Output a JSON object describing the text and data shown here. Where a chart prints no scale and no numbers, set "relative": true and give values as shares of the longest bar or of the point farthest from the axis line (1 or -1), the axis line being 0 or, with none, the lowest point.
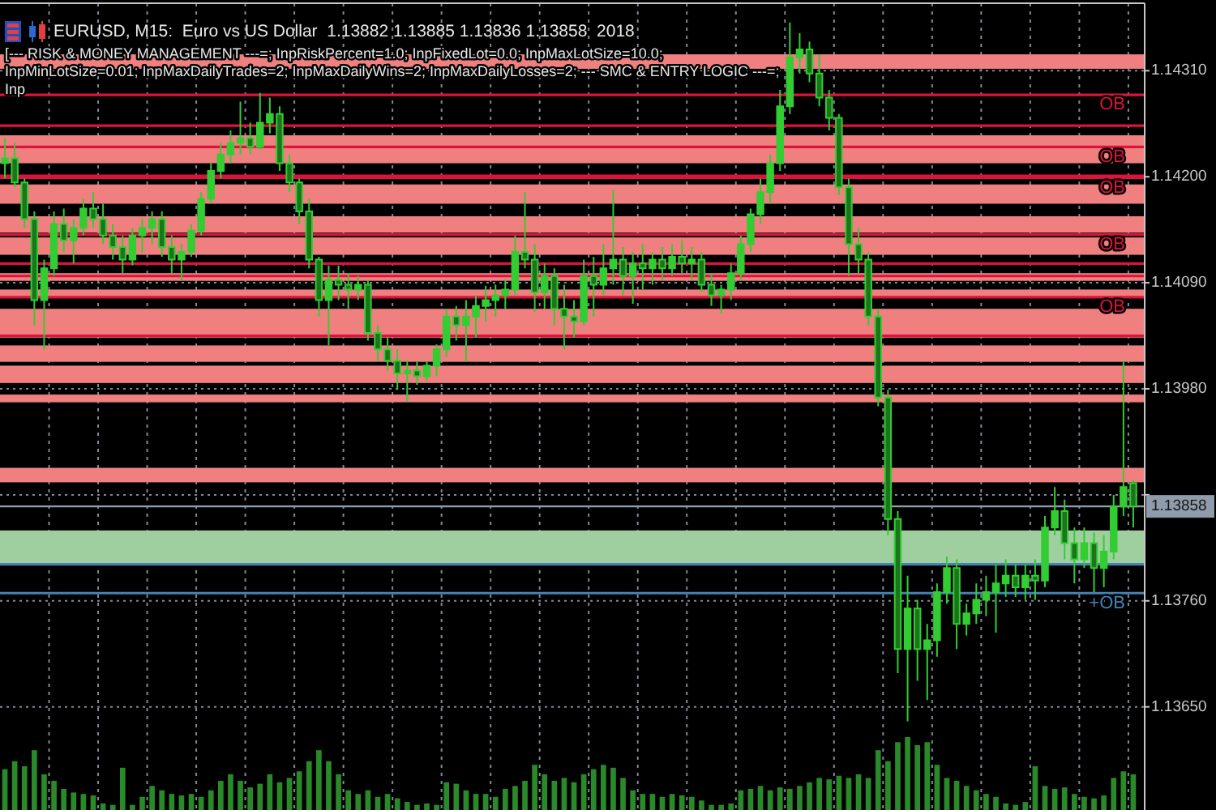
{
  "chart_data": [
    {
      "type": "candlestick",
      "title": "EURUSD, M15:  Euro vs US Dollar  1.13882 1.13885 1.13836 1.13858  2018",
      "subtitle": "[--- RISK & MONEY MANAGEMENT ---=; InpRiskPercent=1.0; InpFixedLot=0.0; InpMaxLotSize=10.0; InpMinLotSize=0.01; InpMaxDailyTrades=2; InpMaxDailyWins=2; InpMaxDailyLosses=2; --- SMC & ENTRY LOGIC ---=; Inp",
      "categories": [
        null,
        null,
        null,
        null,
        null,
        null,
        null,
        null,
        null,
        null,
        null,
        null,
        null,
        null,
        null,
        null,
        null,
        null,
        null,
        null,
        null,
        null,
        null,
        null,
        null,
        null,
        null,
        null,
        null,
        null,
        null,
        null,
        null,
        null,
        null,
        null,
        null,
        null,
        null,
        null,
        null,
        null,
        null,
        null,
        null,
        null,
        null,
        null,
        null,
        null,
        null,
        null,
        null,
        null,
        null,
        null,
        null,
        null,
        null,
        null,
        null,
        null,
        null,
        null,
        null,
        null,
        null,
        null,
        null,
        null,
        null,
        null,
        null,
        null,
        null,
        null,
        null,
        null,
        null,
        null,
        null,
        null,
        null,
        null,
        null,
        null,
        null,
        null,
        null,
        null,
        null,
        null,
        null,
        null,
        null,
        null,
        null,
        null,
        null,
        null,
        null,
        null,
        null,
        null,
        null,
        null,
        null,
        null,
        null,
        null,
        null,
        null,
        null,
        null,
        null,
        null
      ],
      "ohlc": [
        [
          1.14214,
          1.1424,
          1.14198,
          1.14219
        ],
        [
          1.14219,
          1.14235,
          1.14189,
          1.14194
        ],
        [
          1.14194,
          1.14198,
          1.14147,
          1.14156
        ],
        [
          1.14156,
          1.14164,
          1.14046,
          1.14072
        ],
        [
          1.14072,
          1.14114,
          1.14021,
          1.14105
        ],
        [
          1.14105,
          1.14164,
          1.14097,
          1.14151
        ],
        [
          1.14151,
          1.14167,
          1.14122,
          1.14134
        ],
        [
          1.14134,
          1.14156,
          1.1411,
          1.14147
        ],
        [
          1.14147,
          1.14177,
          1.14139,
          1.14167
        ],
        [
          1.14167,
          1.14184,
          1.14147,
          1.14156
        ],
        [
          1.14156,
          1.14172,
          1.1413,
          1.14139
        ],
        [
          1.14139,
          1.14151,
          1.14114,
          1.14127
        ],
        [
          1.14127,
          1.14139,
          1.141,
          1.14114
        ],
        [
          1.14114,
          1.14147,
          1.14108,
          1.14139
        ],
        [
          1.14139,
          1.14156,
          1.14122,
          1.14147
        ],
        [
          1.14147,
          1.14164,
          1.1413,
          1.14156
        ],
        [
          1.14156,
          1.14164,
          1.14117,
          1.14127
        ],
        [
          1.14127,
          1.14139,
          1.141,
          1.14114
        ],
        [
          1.14114,
          1.1413,
          1.14092,
          1.14122
        ],
        [
          1.14122,
          1.14151,
          1.14117,
          1.14144
        ],
        [
          1.14144,
          1.14184,
          1.14139,
          1.14177
        ],
        [
          1.14177,
          1.14214,
          1.14172,
          1.14206
        ],
        [
          1.14206,
          1.14235,
          1.14198,
          1.14223
        ],
        [
          1.14223,
          1.14248,
          1.14214,
          1.14235
        ],
        [
          1.14235,
          1.14278,
          1.14223,
          1.1424
        ],
        [
          1.1424,
          1.14256,
          1.14223,
          1.14231
        ],
        [
          1.14231,
          1.14287,
          1.14228,
          1.14256
        ],
        [
          1.14256,
          1.14282,
          1.14245,
          1.14265
        ],
        [
          1.14265,
          1.14273,
          1.14206,
          1.14214
        ],
        [
          1.14214,
          1.14223,
          1.14184,
          1.14194
        ],
        [
          1.14194,
          1.14198,
          1.14151,
          1.14164
        ],
        [
          1.14164,
          1.14177,
          1.14105,
          1.14114
        ],
        [
          1.14114,
          1.14117,
          1.14055,
          1.14072
        ],
        [
          1.14072,
          1.14108,
          1.14025,
          1.14093
        ],
        [
          1.14093,
          1.14108,
          1.14072,
          1.14088
        ],
        [
          1.14088,
          1.141,
          1.14063,
          1.14083
        ],
        [
          1.14083,
          1.14097,
          1.14072,
          1.14088
        ],
        [
          1.14088,
          1.14093,
          1.1403,
          1.14038
        ],
        [
          1.14038,
          1.14046,
          1.14009,
          1.14021
        ],
        [
          1.14021,
          1.14033,
          1.13999,
          1.14009
        ],
        [
          1.14009,
          1.14021,
          1.13979,
          1.13996
        ],
        [
          1.13996,
          1.14009,
          1.13967,
          1.13999
        ],
        [
          1.13999,
          1.14009,
          1.13984,
          1.13993
        ],
        [
          1.13993,
          1.14009,
          1.13988,
          1.14004
        ],
        [
          1.14004,
          1.14026,
          1.13993,
          1.14021
        ],
        [
          1.14021,
          1.14063,
          1.14013,
          1.14055
        ],
        [
          1.14055,
          1.14066,
          1.1403,
          1.14046
        ],
        [
          1.14046,
          1.14072,
          1.14008,
          1.14055
        ],
        [
          1.14055,
          1.14077,
          1.14033,
          1.14066
        ],
        [
          1.14066,
          1.14087,
          1.1405,
          1.14072
        ],
        [
          1.14072,
          1.14088,
          1.14055,
          1.14077
        ],
        [
          1.14077,
          1.14093,
          1.14063,
          1.14083
        ],
        [
          1.14083,
          1.14139,
          1.14077,
          1.14122
        ],
        [
          1.14122,
          1.14184,
          1.14105,
          1.14114
        ],
        [
          1.14114,
          1.1413,
          1.1406,
          1.1408
        ],
        [
          1.1408,
          1.1411,
          1.14063,
          1.14097
        ],
        [
          1.14097,
          1.14105,
          1.14046,
          1.14063
        ],
        [
          1.14063,
          1.14088,
          1.14021,
          1.14055
        ],
        [
          1.14055,
          1.14072,
          1.14033,
          1.1405
        ],
        [
          1.1405,
          1.14114,
          1.14046,
          1.14097
        ],
        [
          1.14097,
          1.14117,
          1.14055,
          1.14088
        ],
        [
          1.14088,
          1.1413,
          1.14077,
          1.14105
        ],
        [
          1.14105,
          1.14186,
          1.14088,
          1.14114
        ],
        [
          1.14114,
          1.14127,
          1.14077,
          1.14097
        ],
        [
          1.14097,
          1.14122,
          1.14068,
          1.1411
        ],
        [
          1.1411,
          1.1413,
          1.14083,
          1.14105
        ],
        [
          1.14105,
          1.14122,
          1.14088,
          1.14114
        ],
        [
          1.14114,
          1.14127,
          1.14093,
          1.14105
        ],
        [
          1.14105,
          1.1413,
          1.14097,
          1.14117
        ],
        [
          1.14117,
          1.14134,
          1.141,
          1.1411
        ],
        [
          1.1411,
          1.14127,
          1.14093,
          1.14114
        ],
        [
          1.14114,
          1.14122,
          1.1408,
          1.14088
        ],
        [
          1.14088,
          1.141,
          1.14066,
          1.14077
        ],
        [
          1.14077,
          1.14088,
          1.14058,
          1.14083
        ],
        [
          1.14083,
          1.1411,
          1.14072,
          1.141
        ],
        [
          1.141,
          1.14139,
          1.14093,
          1.1413
        ],
        [
          1.1413,
          1.14167,
          1.14122,
          1.14161
        ],
        [
          1.14161,
          1.14198,
          1.14151,
          1.14184
        ],
        [
          1.14184,
          1.14223,
          1.14172,
          1.14214
        ],
        [
          1.14214,
          1.1429,
          1.14206,
          1.14273
        ],
        [
          1.14273,
          1.1436,
          1.14265,
          1.14324
        ],
        [
          1.14324,
          1.14349,
          1.14307,
          1.14332
        ],
        [
          1.14332,
          1.1434,
          1.14298,
          1.14307
        ],
        [
          1.14307,
          1.14327,
          1.14273,
          1.14282
        ],
        [
          1.14282,
          1.1429,
          1.14248,
          1.14261
        ],
        [
          1.14261,
          1.14265,
          1.14181,
          1.14189
        ],
        [
          1.14189,
          1.14198,
          1.14097,
          1.1413
        ],
        [
          1.1413,
          1.14147,
          1.141,
          1.14114
        ],
        [
          1.14114,
          1.14122,
          1.14046,
          1.14055
        ],
        [
          1.14055,
          1.14063,
          1.13962,
          1.13971
        ],
        [
          1.13971,
          1.13979,
          1.13828,
          1.13845
        ],
        [
          1.13845,
          1.13853,
          1.13685,
          1.1371
        ],
        [
          1.1371,
          1.13786,
          1.13635,
          1.13752
        ],
        [
          1.13752,
          1.13761,
          1.13677,
          1.1371
        ],
        [
          1.1371,
          1.13736,
          1.13657,
          1.13719
        ],
        [
          1.13719,
          1.13778,
          1.13702,
          1.13769
        ],
        [
          1.13769,
          1.13806,
          1.13757,
          1.13794
        ],
        [
          1.13794,
          1.13803,
          1.1371,
          1.13736
        ],
        [
          1.13736,
          1.13757,
          1.13724,
          1.13747
        ],
        [
          1.13747,
          1.13778,
          1.13736,
          1.13761
        ],
        [
          1.13761,
          1.13786,
          1.13744,
          1.13769
        ],
        [
          1.13769,
          1.13798,
          1.13727,
          1.13778
        ],
        [
          1.13778,
          1.13803,
          1.13764,
          1.13786
        ],
        [
          1.13786,
          1.13798,
          1.13764,
          1.13774
        ],
        [
          1.13774,
          1.13798,
          1.13761,
          1.13786
        ],
        [
          1.13786,
          1.13803,
          1.13761,
          1.13781
        ],
        [
          1.13781,
          1.13848,
          1.13774,
          1.13836
        ],
        [
          1.13836,
          1.13878,
          1.13828,
          1.13853
        ],
        [
          1.13853,
          1.13865,
          1.13803,
          1.1382
        ],
        [
          1.1382,
          1.13836,
          1.13778,
          1.13803
        ],
        [
          1.13803,
          1.13836,
          1.13794,
          1.1382
        ],
        [
          1.1382,
          1.13831,
          1.13769,
          1.13794
        ],
        [
          1.13794,
          1.13828,
          1.13774,
          1.13811
        ],
        [
          1.13811,
          1.1387,
          1.13803,
          1.13858
        ],
        [
          1.13858,
          1.14009,
          1.13848,
          1.13878
        ],
        [
          1.13882,
          1.13885,
          1.13836,
          1.13858
        ]
      ],
      "color": "#32cd32",
      "ylim": [
        1.13543,
        1.1438
      ],
      "yticks": [
        {
          "value": 1.1365,
          "label": "1.13650"
        },
        {
          "value": 1.1376,
          "label": "1.13760"
        },
        {
          "value": 1.1387,
          "label": null
        },
        {
          "value": 1.1398,
          "label": "1.13980"
        },
        {
          "value": 1.1409,
          "label": "1.14090"
        },
        {
          "value": 1.142,
          "label": "1.14200"
        },
        {
          "value": 1.1431,
          "label": "1.14310"
        }
      ],
      "tick_labels": "y",
      "grid": true,
      "bands": [
        {
          "axis": "y",
          "from": 1.14312,
          "to": 1.14327,
          "color": "#f08080"
        },
        {
          "axis": "y",
          "from": 1.14214,
          "to": 1.14243,
          "color": "#f08080"
        },
        {
          "axis": "y",
          "from": 1.14172,
          "to": 1.14192,
          "color": "#f08080"
        },
        {
          "axis": "y",
          "from": 1.14142,
          "to": 1.14159,
          "color": "#f08080"
        },
        {
          "axis": "y",
          "from": 1.14119,
          "to": 1.14137,
          "color": "#f08080"
        },
        {
          "axis": "y",
          "from": 1.14092,
          "to": 1.141,
          "color": "#f08080"
        },
        {
          "axis": "y",
          "from": 1.14075,
          "to": 1.14083,
          "color": "#f08080"
        },
        {
          "axis": "y",
          "from": 1.14033,
          "to": 1.14063,
          "color": "#f08080"
        },
        {
          "axis": "y",
          "from": 1.14008,
          "to": 1.14025,
          "color": "#f08080"
        },
        {
          "axis": "y",
          "from": 1.13986,
          "to": 1.14004,
          "color": "#f08080"
        },
        {
          "axis": "y",
          "from": 1.13966,
          "to": 1.13974,
          "color": "#f08080"
        },
        {
          "axis": "y",
          "from": 1.13883,
          "to": 1.13898,
          "color": "#f08080"
        },
        {
          "axis": "y",
          "from": 1.13799,
          "to": 1.13833,
          "color": "#9fcf9f"
        }
      ],
      "ref_lines": [
        {
          "axis": "y",
          "value": 1.13858,
          "label": "1.13858",
          "color": "#8f9cab"
        },
        {
          "axis": "y",
          "value": 1.14285,
          "color": "#dc143c"
        },
        {
          "axis": "y",
          "value": 1.14253,
          "color": "#dc143c"
        },
        {
          "axis": "y",
          "value": 1.14231,
          "color": "#dc143c"
        },
        {
          "axis": "y",
          "value": 1.14201,
          "color": "#dc143c"
        },
        {
          "axis": "y",
          "value": 1.14199,
          "color": "#dc143c"
        },
        {
          "axis": "y",
          "value": 1.1411,
          "color": "#dc143c"
        },
        {
          "axis": "y",
          "value": 1.1414,
          "color": "#dc143c"
        },
        {
          "axis": "y",
          "value": 1.14097,
          "color": "#dc143c"
        },
        {
          "axis": "y",
          "value": 1.14075,
          "color": "#dc143c"
        },
        {
          "axis": "y",
          "value": 1.14035,
          "color": "#dc143c"
        },
        {
          "axis": "y",
          "value": 1.13798,
          "color": "#4682b4"
        },
        {
          "axis": "y",
          "value": 1.13768,
          "color": "#4682b4"
        }
      ],
      "annotations": [
        {
          "text": "OB",
          "y": 1.14285
        },
        {
          "text": "OB",
          "y": 1.14231
        },
        {
          "text": "OB",
          "y": 1.14199
        },
        {
          "text": "OB",
          "y": 1.1414
        },
        {
          "text": "OB",
          "y": 1.14075
        },
        {
          "text": "+OB",
          "y": 1.13768
        }
      ]
    },
    {
      "type": "bar",
      "relative": true,
      "categories": [
        null,
        null,
        null,
        null,
        null,
        null,
        null,
        null,
        null,
        null,
        null,
        null,
        null,
        null,
        null,
        null,
        null,
        null,
        null,
        null,
        null,
        null,
        null,
        null,
        null,
        null,
        null,
        null,
        null,
        null,
        null,
        null,
        null,
        null,
        null,
        null,
        null,
        null,
        null,
        null,
        null,
        null,
        null,
        null,
        null,
        null,
        null,
        null,
        null,
        null,
        null,
        null,
        null,
        null,
        null,
        null,
        null,
        null,
        null,
        null,
        null,
        null,
        null,
        null,
        null,
        null,
        null,
        null,
        null,
        null,
        null,
        null,
        null,
        null,
        null,
        null,
        null,
        null,
        null,
        null,
        null,
        null,
        null,
        null,
        null,
        null,
        null,
        null,
        null,
        null,
        null,
        null,
        null,
        null,
        null,
        null,
        null,
        null,
        null,
        null,
        null,
        null,
        null,
        null,
        null,
        null,
        null,
        null,
        null,
        null,
        null,
        null,
        null,
        null,
        null,
        null
      ],
      "values": [
        0.56,
        0.67,
        0.6,
        0.82,
        0.49,
        0.4,
        0.29,
        0.24,
        0.22,
        0.2,
        0.09,
        0.07,
        0.58,
        0.07,
        0.18,
        0.33,
        0.27,
        0.22,
        0.2,
        0.22,
        0.18,
        0.27,
        0.4,
        0.49,
        0.4,
        0.31,
        0.36,
        0.49,
        0.38,
        0.44,
        0.53,
        0.67,
        0.82,
        0.67,
        0.49,
        0.27,
        0.22,
        0.27,
        0.18,
        0.22,
        0.16,
        0.11,
        0.07,
        0.09,
        0.07,
        0.38,
        0.36,
        0.27,
        0.22,
        0.22,
        0.18,
        0.29,
        0.33,
        0.4,
        0.62,
        0.49,
        0.4,
        0.44,
        0.38,
        0.49,
        0.56,
        0.62,
        0.58,
        0.44,
        0.27,
        0.22,
        0.22,
        0.18,
        0.22,
        0.2,
        0.18,
        0.13,
        0.07,
        0.07,
        0.09,
        0.27,
        0.29,
        0.33,
        0.27,
        0.31,
        0.29,
        0.33,
        0.38,
        0.44,
        0.42,
        0.47,
        0.44,
        0.49,
        0.44,
        0.82,
        0.67,
        0.93,
        1,
        0.89,
        0.93,
        0.62,
        0.44,
        0.4,
        0.33,
        0.27,
        0.22,
        0.18,
        0.09,
        0.07,
        0.11,
        0.6,
        0.33,
        0.29,
        0.31,
        0.22,
        0.18,
        0.16,
        0.2,
        0.44,
        0.53,
        0.49
      ],
      "color": "#2a8a2a"
    }
  ]
}
